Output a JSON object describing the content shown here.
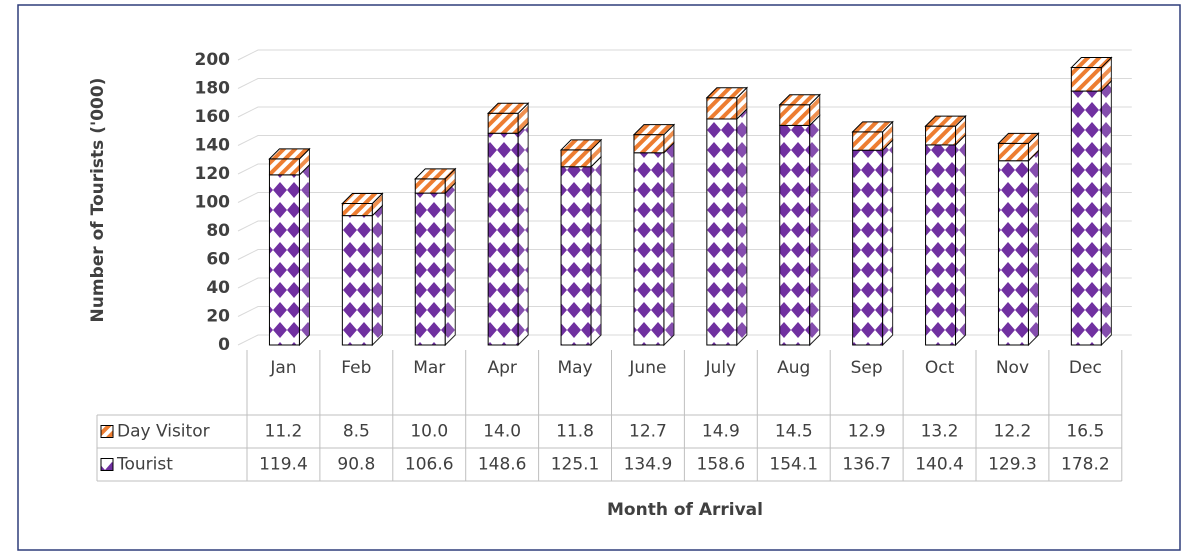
{
  "chart_data": {
    "type": "bar",
    "stacked": true,
    "y_label": "Number of Tourists ('000)",
    "x_label": "Month of Arrival",
    "categories": [
      "Jan",
      "Feb",
      "Mar",
      "Apr",
      "May",
      "June",
      "July",
      "Aug",
      "Sep",
      "Oct",
      "Nov",
      "Dec"
    ],
    "series": [
      {
        "name": "Tourist",
        "color": "#7030a0",
        "values": [
          119.4,
          90.8,
          106.6,
          148.6,
          125.1,
          134.9,
          158.6,
          154.1,
          136.7,
          140.4,
          129.3,
          178.2
        ]
      },
      {
        "name": "Day Visitor",
        "color": "#ed7d31",
        "values": [
          11.2,
          8.5,
          10.0,
          14.0,
          11.8,
          12.7,
          14.9,
          14.5,
          12.9,
          13.2,
          12.2,
          16.5
        ],
        "value_labels": [
          "11.2",
          "8.5",
          "10.0",
          "14.0",
          "11.8",
          "12.7",
          "14.9",
          "14.5",
          "12.9",
          "13.2",
          "12.2",
          "16.5"
        ]
      }
    ],
    "ylim": [
      0,
      200
    ],
    "yticks": [
      0,
      20,
      40,
      60,
      80,
      100,
      120,
      140,
      160,
      180,
      200
    ],
    "grid": true
  }
}
